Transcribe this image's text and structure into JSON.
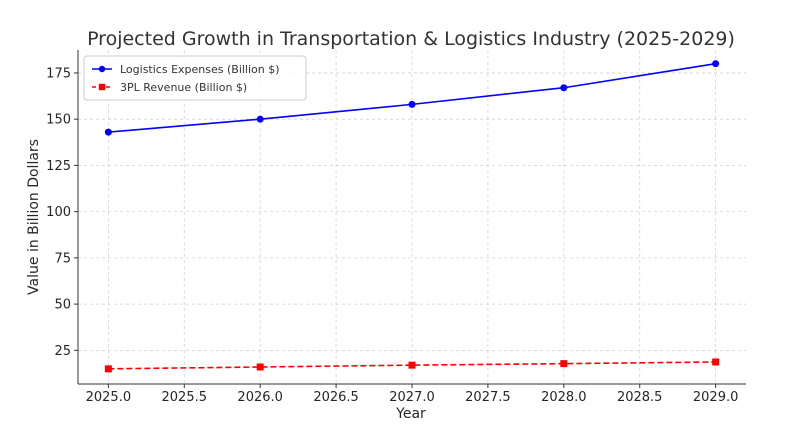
{
  "chart_data": {
    "type": "line",
    "title": "Projected Growth in Transportation & Logistics Industry (2025-2029)",
    "xlabel": "Year",
    "ylabel": "Value in Billion Dollars",
    "x": [
      2025,
      2026,
      2027,
      2028,
      2029
    ],
    "xlim": [
      2024.8,
      2029.2
    ],
    "ylim": [
      6.8,
      187.4
    ],
    "xticks": [
      2025.0,
      2025.5,
      2026.0,
      2026.5,
      2027.0,
      2027.5,
      2028.0,
      2028.5,
      2029.0
    ],
    "xtick_labels": [
      "2025.0",
      "2025.5",
      "2026.0",
      "2026.5",
      "2027.0",
      "2027.5",
      "2028.0",
      "2028.5",
      "2029.0"
    ],
    "yticks": [
      25,
      50,
      75,
      100,
      125,
      150,
      175
    ],
    "ytick_labels": [
      "25",
      "50",
      "75",
      "100",
      "125",
      "150",
      "175"
    ],
    "grid": true,
    "legend_position": "top-left",
    "series": [
      {
        "name": "Logistics Expenses (Billion $)",
        "values": [
          143,
          150,
          158,
          167,
          180
        ],
        "color": "#0000ff",
        "marker": "circle",
        "linestyle": "solid"
      },
      {
        "name": "3PL Revenue (Billion $)",
        "values": [
          15,
          16,
          17,
          17.8,
          18.7
        ],
        "color": "#ff0000",
        "marker": "square",
        "linestyle": "dashed"
      }
    ]
  }
}
